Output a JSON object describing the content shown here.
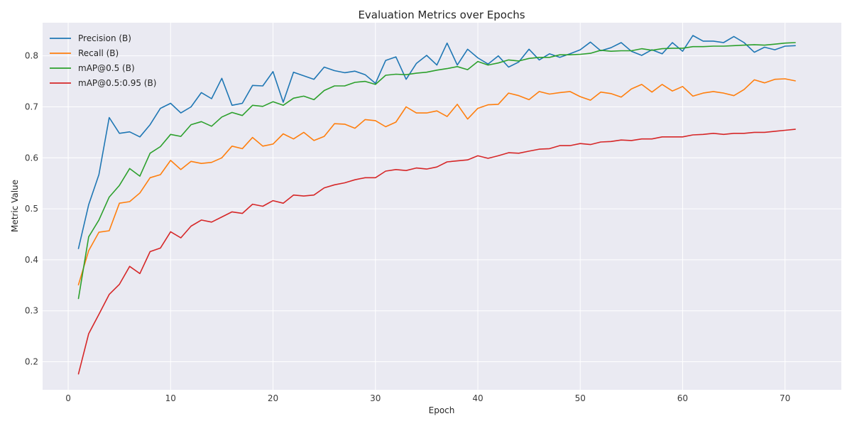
{
  "chart_data": {
    "type": "line",
    "title": "Evaluation Metrics over Epochs",
    "xlabel": "Epoch",
    "ylabel": "Metric Value",
    "xlim": [
      -2.5,
      75.5
    ],
    "ylim": [
      0.145,
      0.865
    ],
    "xticks": [
      0,
      10,
      20,
      30,
      40,
      50,
      60,
      70
    ],
    "yticks": [
      0.2,
      0.3,
      0.4,
      0.5,
      0.6,
      0.7,
      0.8
    ],
    "grid": true,
    "legend_position": "top-left",
    "background": "#eaeaf2",
    "x": [
      1,
      2,
      3,
      4,
      5,
      6,
      7,
      8,
      9,
      10,
      11,
      12,
      13,
      14,
      15,
      16,
      17,
      18,
      19,
      20,
      21,
      22,
      23,
      24,
      25,
      26,
      27,
      28,
      29,
      30,
      31,
      32,
      33,
      34,
      35,
      36,
      37,
      38,
      39,
      40,
      41,
      42,
      43,
      44,
      45,
      46,
      47,
      48,
      49,
      50,
      51,
      52,
      53,
      54,
      55,
      56,
      57,
      58,
      59,
      60,
      61,
      62,
      63,
      64,
      65,
      66,
      67,
      68,
      69,
      70,
      71
    ],
    "series": [
      {
        "name": "Precision (B)",
        "color": "#1f77b4",
        "values": [
          0.422,
          0.508,
          0.567,
          0.679,
          0.648,
          0.651,
          0.641,
          0.665,
          0.697,
          0.707,
          0.688,
          0.7,
          0.728,
          0.716,
          0.756,
          0.703,
          0.707,
          0.742,
          0.741,
          0.769,
          0.709,
          0.768,
          0.761,
          0.754,
          0.778,
          0.771,
          0.767,
          0.77,
          0.763,
          0.746,
          0.791,
          0.798,
          0.754,
          0.785,
          0.801,
          0.782,
          0.825,
          0.782,
          0.813,
          0.796,
          0.784,
          0.8,
          0.778,
          0.788,
          0.813,
          0.792,
          0.804,
          0.797,
          0.804,
          0.812,
          0.827,
          0.81,
          0.816,
          0.826,
          0.809,
          0.801,
          0.812,
          0.804,
          0.826,
          0.809,
          0.84,
          0.829,
          0.829,
          0.826,
          0.838,
          0.826,
          0.807,
          0.817,
          0.812,
          0.819,
          0.82
        ]
      },
      {
        "name": "Recall (B)",
        "color": "#ff7f0e",
        "values": [
          0.351,
          0.418,
          0.454,
          0.457,
          0.511,
          0.514,
          0.531,
          0.561,
          0.567,
          0.595,
          0.577,
          0.593,
          0.589,
          0.591,
          0.6,
          0.623,
          0.618,
          0.64,
          0.623,
          0.627,
          0.647,
          0.637,
          0.65,
          0.634,
          0.642,
          0.667,
          0.666,
          0.658,
          0.675,
          0.673,
          0.661,
          0.67,
          0.7,
          0.688,
          0.688,
          0.692,
          0.681,
          0.705,
          0.676,
          0.697,
          0.704,
          0.705,
          0.727,
          0.722,
          0.714,
          0.73,
          0.725,
          0.728,
          0.73,
          0.72,
          0.713,
          0.729,
          0.726,
          0.719,
          0.735,
          0.744,
          0.729,
          0.744,
          0.731,
          0.74,
          0.721,
          0.727,
          0.73,
          0.727,
          0.722,
          0.734,
          0.753,
          0.747,
          0.754,
          0.755,
          0.751
        ]
      },
      {
        "name": "mAP@0.5 (B)",
        "color": "#2ca02c",
        "values": [
          0.324,
          0.445,
          0.478,
          0.523,
          0.546,
          0.579,
          0.564,
          0.609,
          0.622,
          0.646,
          0.642,
          0.665,
          0.671,
          0.662,
          0.68,
          0.689,
          0.683,
          0.703,
          0.701,
          0.71,
          0.703,
          0.717,
          0.721,
          0.714,
          0.732,
          0.741,
          0.741,
          0.748,
          0.75,
          0.744,
          0.762,
          0.764,
          0.763,
          0.766,
          0.768,
          0.772,
          0.775,
          0.779,
          0.773,
          0.789,
          0.782,
          0.786,
          0.792,
          0.79,
          0.795,
          0.797,
          0.797,
          0.802,
          0.802,
          0.803,
          0.805,
          0.811,
          0.809,
          0.81,
          0.81,
          0.814,
          0.811,
          0.814,
          0.815,
          0.815,
          0.818,
          0.818,
          0.819,
          0.819,
          0.82,
          0.821,
          0.822,
          0.821,
          0.823,
          0.825,
          0.826
        ]
      },
      {
        "name": "mAP@0.5:0.95 (B)",
        "color": "#d62728",
        "values": [
          0.176,
          0.255,
          0.293,
          0.332,
          0.352,
          0.387,
          0.373,
          0.416,
          0.423,
          0.455,
          0.443,
          0.466,
          0.478,
          0.474,
          0.484,
          0.494,
          0.491,
          0.509,
          0.505,
          0.516,
          0.511,
          0.527,
          0.525,
          0.527,
          0.541,
          0.547,
          0.551,
          0.557,
          0.561,
          0.561,
          0.574,
          0.577,
          0.575,
          0.58,
          0.578,
          0.582,
          0.592,
          0.594,
          0.596,
          0.604,
          0.599,
          0.604,
          0.61,
          0.609,
          0.613,
          0.617,
          0.618,
          0.624,
          0.624,
          0.628,
          0.626,
          0.631,
          0.632,
          0.635,
          0.634,
          0.637,
          0.637,
          0.641,
          0.641,
          0.641,
          0.645,
          0.646,
          0.648,
          0.646,
          0.648,
          0.648,
          0.65,
          0.65,
          0.652,
          0.654,
          0.656
        ]
      }
    ]
  }
}
